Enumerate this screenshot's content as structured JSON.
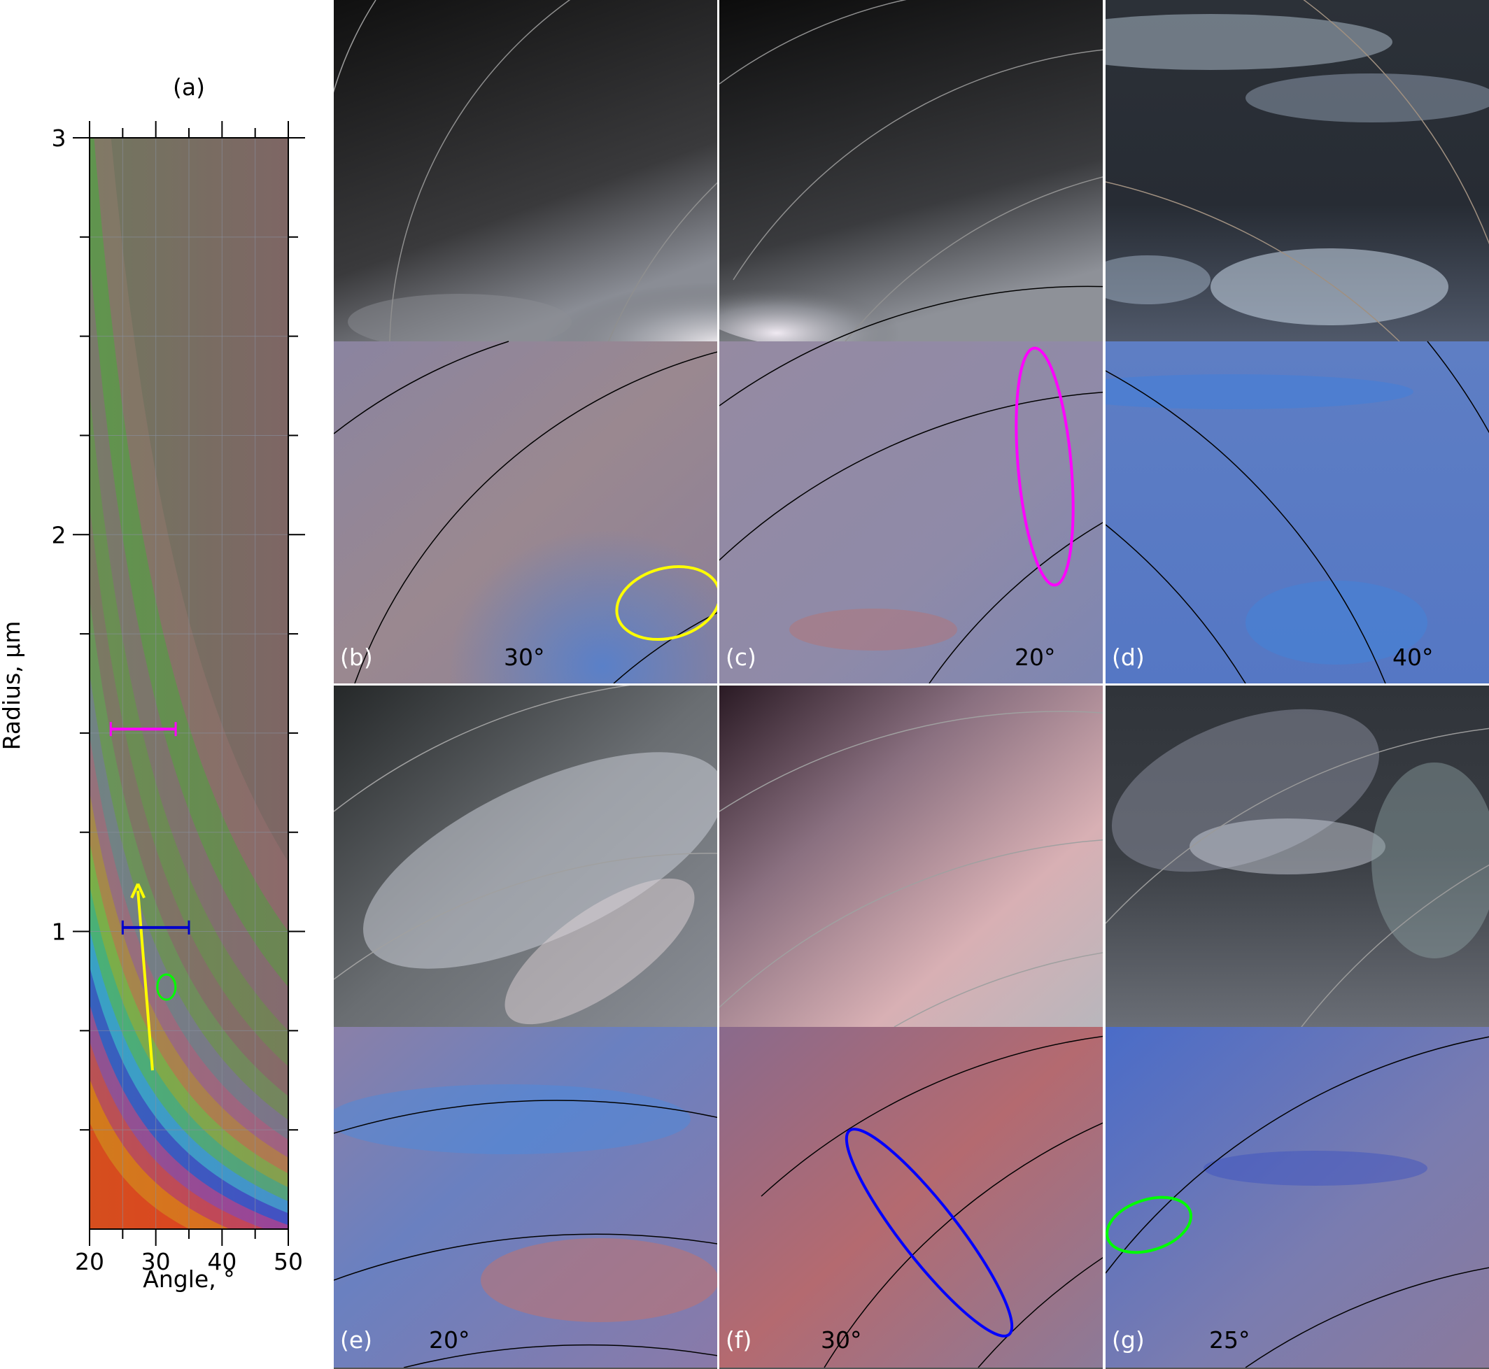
{
  "figure": {
    "chart_data": {
      "type": "heatmap",
      "title": "(a)",
      "xlabel": "Angle, °",
      "ylabel": "Radius, μm",
      "xlim": [
        20,
        50
      ],
      "ylim": [
        0.25,
        3
      ],
      "x_ticks": [
        "20",
        "30",
        "40",
        "50"
      ],
      "y_ticks": [
        "1",
        "2",
        "3"
      ],
      "grid": true,
      "annotations": [
        {
          "kind": "arrow",
          "color": "#ffff00",
          "from": [
            29.5,
            0.65
          ],
          "to": [
            27.3,
            1.12
          ]
        },
        {
          "kind": "interval",
          "color": "#ff00ff",
          "x": [
            23.2,
            33
          ],
          "y": 1.51
        },
        {
          "kind": "interval",
          "color": "#0000cc",
          "x": [
            25,
            35
          ],
          "y": 1.01
        },
        {
          "kind": "ellipse",
          "color": "#00ff00",
          "x": 31.6,
          "y": 0.86
        }
      ]
    },
    "panels": [
      {
        "label": "(b)",
        "angle": "30°",
        "ellipse_color": "#ffff00"
      },
      {
        "label": "(c)",
        "angle": "20°",
        "ellipse_color": "#ff00ff"
      },
      {
        "label": "(d)",
        "angle": "40°",
        "ellipse_color": ""
      },
      {
        "label": "(e)",
        "angle": "20°",
        "ellipse_color": ""
      },
      {
        "label": "(f)",
        "angle": "30°",
        "ellipse_color": "#0000ff"
      },
      {
        "label": "(g)",
        "angle": "25°",
        "ellipse_color": "#00ff00"
      }
    ]
  }
}
